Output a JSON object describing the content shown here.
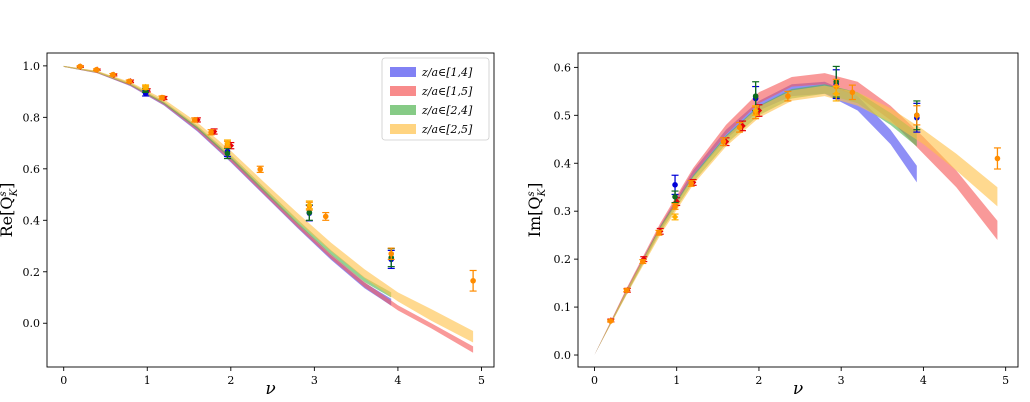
{
  "chart_data": [
    {
      "type": "line",
      "xlabel": "ν",
      "ylabel_main": "Re[Q",
      "ylabel_sup": "s",
      "ylabel_sub": "K",
      "ylabel_close": "]",
      "xlim": [
        -0.2,
        5.15
      ],
      "ylim": [
        -0.17,
        1.05
      ],
      "xticks": [
        0,
        1,
        2,
        3,
        4,
        5
      ],
      "yticks": [
        0.0,
        0.2,
        0.4,
        0.6,
        0.8,
        1.0
      ],
      "ytick_decimals": 1,
      "legend_loc": "upper right",
      "bands": [
        {
          "name": "z/a∈[1,4]",
          "color": "#4b4bf0",
          "x": [
            0,
            0.4,
            0.8,
            1.2,
            1.6,
            2.0,
            2.4,
            2.8,
            3.2,
            3.6,
            3.92
          ],
          "lo": [
            0.996,
            0.972,
            0.921,
            0.846,
            0.745,
            0.625,
            0.497,
            0.369,
            0.246,
            0.136,
            0.068
          ],
          "hi": [
            1.0,
            0.978,
            0.929,
            0.857,
            0.761,
            0.643,
            0.513,
            0.385,
            0.264,
            0.158,
            0.095
          ]
        },
        {
          "name": "z/a∈[1,5]",
          "color": "#f55a5a",
          "x": [
            0,
            0.4,
            0.8,
            1.2,
            1.6,
            2.0,
            2.4,
            2.8,
            3.2,
            3.6,
            4.0,
            4.4,
            4.9
          ],
          "lo": [
            0.996,
            0.972,
            0.922,
            0.848,
            0.748,
            0.628,
            0.5,
            0.372,
            0.25,
            0.14,
            0.05,
            -0.02,
            -0.115
          ],
          "hi": [
            1.0,
            0.978,
            0.93,
            0.858,
            0.763,
            0.647,
            0.518,
            0.39,
            0.268,
            0.16,
            0.07,
            0.0,
            -0.09
          ]
        },
        {
          "name": "z/a∈[2,4]",
          "color": "#52b552",
          "x": [
            0,
            0.4,
            0.8,
            1.2,
            1.6,
            2.0,
            2.4,
            2.8,
            3.2,
            3.6,
            3.92
          ],
          "lo": [
            0.996,
            0.973,
            0.925,
            0.852,
            0.755,
            0.638,
            0.51,
            0.385,
            0.266,
            0.16,
            0.1
          ],
          "hi": [
            1.0,
            0.979,
            0.933,
            0.862,
            0.768,
            0.655,
            0.528,
            0.403,
            0.284,
            0.178,
            0.12
          ]
        },
        {
          "name": "z/a∈[2,5]",
          "color": "#ffc24a",
          "x": [
            0,
            0.4,
            0.8,
            1.2,
            1.6,
            2.0,
            2.4,
            2.8,
            3.2,
            3.6,
            4.0,
            4.4,
            4.9
          ],
          "lo": [
            0.996,
            0.974,
            0.927,
            0.857,
            0.762,
            0.646,
            0.52,
            0.395,
            0.28,
            0.175,
            0.085,
            0.01,
            -0.075
          ],
          "hi": [
            1.0,
            0.981,
            0.937,
            0.87,
            0.78,
            0.67,
            0.548,
            0.428,
            0.313,
            0.21,
            0.12,
            0.055,
            -0.03
          ]
        }
      ],
      "points": [
        {
          "color": "#e6000a",
          "marker": "diamond",
          "x": [
            0.2,
            0.4,
            0.6,
            0.8,
            1.0,
            1.2,
            1.6,
            1.8,
            2.0
          ],
          "y": [
            0.997,
            0.985,
            0.965,
            0.94,
            0.905,
            0.875,
            0.79,
            0.745,
            0.69
          ],
          "err": [
            0.003,
            0.003,
            0.004,
            0.005,
            0.006,
            0.006,
            0.008,
            0.01,
            0.012
          ]
        },
        {
          "color": "#0000d8",
          "marker": "circle",
          "x": [
            0.98,
            1.96,
            2.94,
            3.92
          ],
          "y": [
            0.893,
            0.668,
            0.428,
            0.248
          ],
          "err": [
            0.01,
            0.02,
            0.03,
            0.035
          ]
        },
        {
          "color": "#0c6b1e",
          "marker": "circle",
          "x": [
            0.98,
            1.96,
            2.94,
            3.92
          ],
          "y": [
            0.905,
            0.66,
            0.43,
            0.255
          ],
          "err": [
            0.008,
            0.02,
            0.03,
            0.035
          ]
        },
        {
          "color": "#ff8c00",
          "marker": "circle",
          "x": [
            0.196,
            0.392,
            0.588,
            0.784,
            0.98,
            1.176,
            1.568,
            1.764,
            1.96,
            2.352,
            2.94,
            3.136,
            3.92,
            4.9
          ],
          "y": [
            0.998,
            0.985,
            0.966,
            0.94,
            0.915,
            0.877,
            0.79,
            0.742,
            0.695,
            0.598,
            0.455,
            0.415,
            0.27,
            0.165
          ],
          "err": [
            0.002,
            0.003,
            0.004,
            0.005,
            0.006,
            0.006,
            0.008,
            0.01,
            0.012,
            0.012,
            0.015,
            0.015,
            0.022,
            0.04
          ]
        },
        {
          "color": "#ffb000",
          "marker": "diamond",
          "x": [
            0.98,
            1.96,
            2.94
          ],
          "y": [
            0.918,
            0.7,
            0.46
          ],
          "err": [
            0.008,
            0.012,
            0.015
          ]
        }
      ]
    },
    {
      "type": "line",
      "xlabel": "ν",
      "ylabel_main": "Im[Q",
      "ylabel_sup": "s",
      "ylabel_sub": "K",
      "ylabel_close": "]",
      "xlim": [
        -0.2,
        5.15
      ],
      "ylim": [
        -0.025,
        0.63
      ],
      "xticks": [
        0,
        1,
        2,
        3,
        4,
        5
      ],
      "yticks": [
        0.0,
        0.1,
        0.2,
        0.3,
        0.4,
        0.5,
        0.6
      ],
      "ytick_decimals": 1,
      "bands": [
        {
          "name": "z/a∈[1,4]",
          "color": "#4b4bf0",
          "x": [
            0,
            0.4,
            0.8,
            1.2,
            1.6,
            2.0,
            2.4,
            2.8,
            3.2,
            3.6,
            3.92
          ],
          "lo": [
            0,
            0.13,
            0.26,
            0.37,
            0.45,
            0.51,
            0.54,
            0.545,
            0.51,
            0.44,
            0.36
          ],
          "hi": [
            0,
            0.14,
            0.27,
            0.385,
            0.47,
            0.53,
            0.565,
            0.57,
            0.54,
            0.47,
            0.395
          ]
        },
        {
          "name": "z/a∈[1,5]",
          "color": "#f55a5a",
          "x": [
            0,
            0.4,
            0.8,
            1.2,
            1.6,
            2.0,
            2.4,
            2.8,
            3.2,
            3.6,
            4.0,
            4.4,
            4.9
          ],
          "lo": [
            0,
            0.132,
            0.262,
            0.375,
            0.46,
            0.525,
            0.56,
            0.565,
            0.54,
            0.49,
            0.42,
            0.35,
            0.24
          ],
          "hi": [
            0,
            0.142,
            0.275,
            0.39,
            0.48,
            0.548,
            0.58,
            0.588,
            0.57,
            0.52,
            0.455,
            0.385,
            0.28
          ]
        },
        {
          "name": "z/a∈[2,4]",
          "color": "#52b552",
          "x": [
            0,
            0.4,
            0.8,
            1.2,
            1.6,
            2.0,
            2.4,
            2.8,
            3.2,
            3.6,
            3.92
          ],
          "lo": [
            0,
            0.13,
            0.255,
            0.36,
            0.44,
            0.5,
            0.535,
            0.545,
            0.525,
            0.48,
            0.435
          ],
          "hi": [
            0,
            0.138,
            0.268,
            0.375,
            0.458,
            0.52,
            0.555,
            0.565,
            0.548,
            0.505,
            0.465
          ]
        },
        {
          "name": "z/a∈[2,5]",
          "color": "#ffc24a",
          "x": [
            0,
            0.4,
            0.8,
            1.2,
            1.6,
            2.0,
            2.4,
            2.8,
            3.2,
            3.6,
            4.0,
            4.4,
            4.9
          ],
          "lo": [
            0,
            0.128,
            0.25,
            0.355,
            0.435,
            0.495,
            0.53,
            0.54,
            0.52,
            0.485,
            0.44,
            0.385,
            0.31
          ],
          "hi": [
            0,
            0.138,
            0.265,
            0.372,
            0.455,
            0.518,
            0.552,
            0.562,
            0.548,
            0.515,
            0.47,
            0.42,
            0.35
          ]
        }
      ],
      "points": [
        {
          "color": "#e6000a",
          "marker": "diamond",
          "x": [
            0.2,
            0.4,
            0.6,
            0.8,
            1.0,
            1.2,
            1.6,
            1.8,
            2.0
          ],
          "y": [
            0.072,
            0.135,
            0.2,
            0.258,
            0.32,
            0.36,
            0.445,
            0.478,
            0.51
          ],
          "err": [
            0.003,
            0.004,
            0.005,
            0.006,
            0.008,
            0.006,
            0.008,
            0.01,
            0.012
          ]
        },
        {
          "color": "#0000d8",
          "marker": "circle",
          "x": [
            0.98,
            1.96,
            2.94,
            3.92
          ],
          "y": [
            0.355,
            0.535,
            0.565,
            0.495
          ],
          "err": [
            0.02,
            0.025,
            0.03,
            0.03
          ]
        },
        {
          "color": "#0c6b1e",
          "marker": "circle",
          "x": [
            0.98,
            1.96,
            2.94,
            3.92
          ],
          "y": [
            0.33,
            0.54,
            0.57,
            0.5
          ],
          "err": [
            0.012,
            0.03,
            0.032,
            0.03
          ]
        },
        {
          "color": "#ff8c00",
          "marker": "circle",
          "x": [
            0.196,
            0.392,
            0.588,
            0.784,
            0.98,
            1.176,
            1.568,
            1.764,
            1.96,
            2.352,
            2.94,
            3.136,
            3.92,
            4.9
          ],
          "y": [
            0.071,
            0.135,
            0.195,
            0.255,
            0.31,
            0.358,
            0.445,
            0.475,
            0.505,
            0.54,
            0.56,
            0.548,
            0.5,
            0.41
          ],
          "err": [
            0.002,
            0.003,
            0.004,
            0.005,
            0.006,
            0.006,
            0.008,
            0.01,
            0.012,
            0.01,
            0.015,
            0.015,
            0.02,
            0.022
          ]
        },
        {
          "color": "#ffb000",
          "marker": "diamond",
          "x": [
            0.98,
            1.96,
            2.94
          ],
          "y": [
            0.288,
            0.51,
            0.545
          ],
          "err": [
            0.006,
            0.01,
            0.015
          ]
        }
      ]
    }
  ]
}
